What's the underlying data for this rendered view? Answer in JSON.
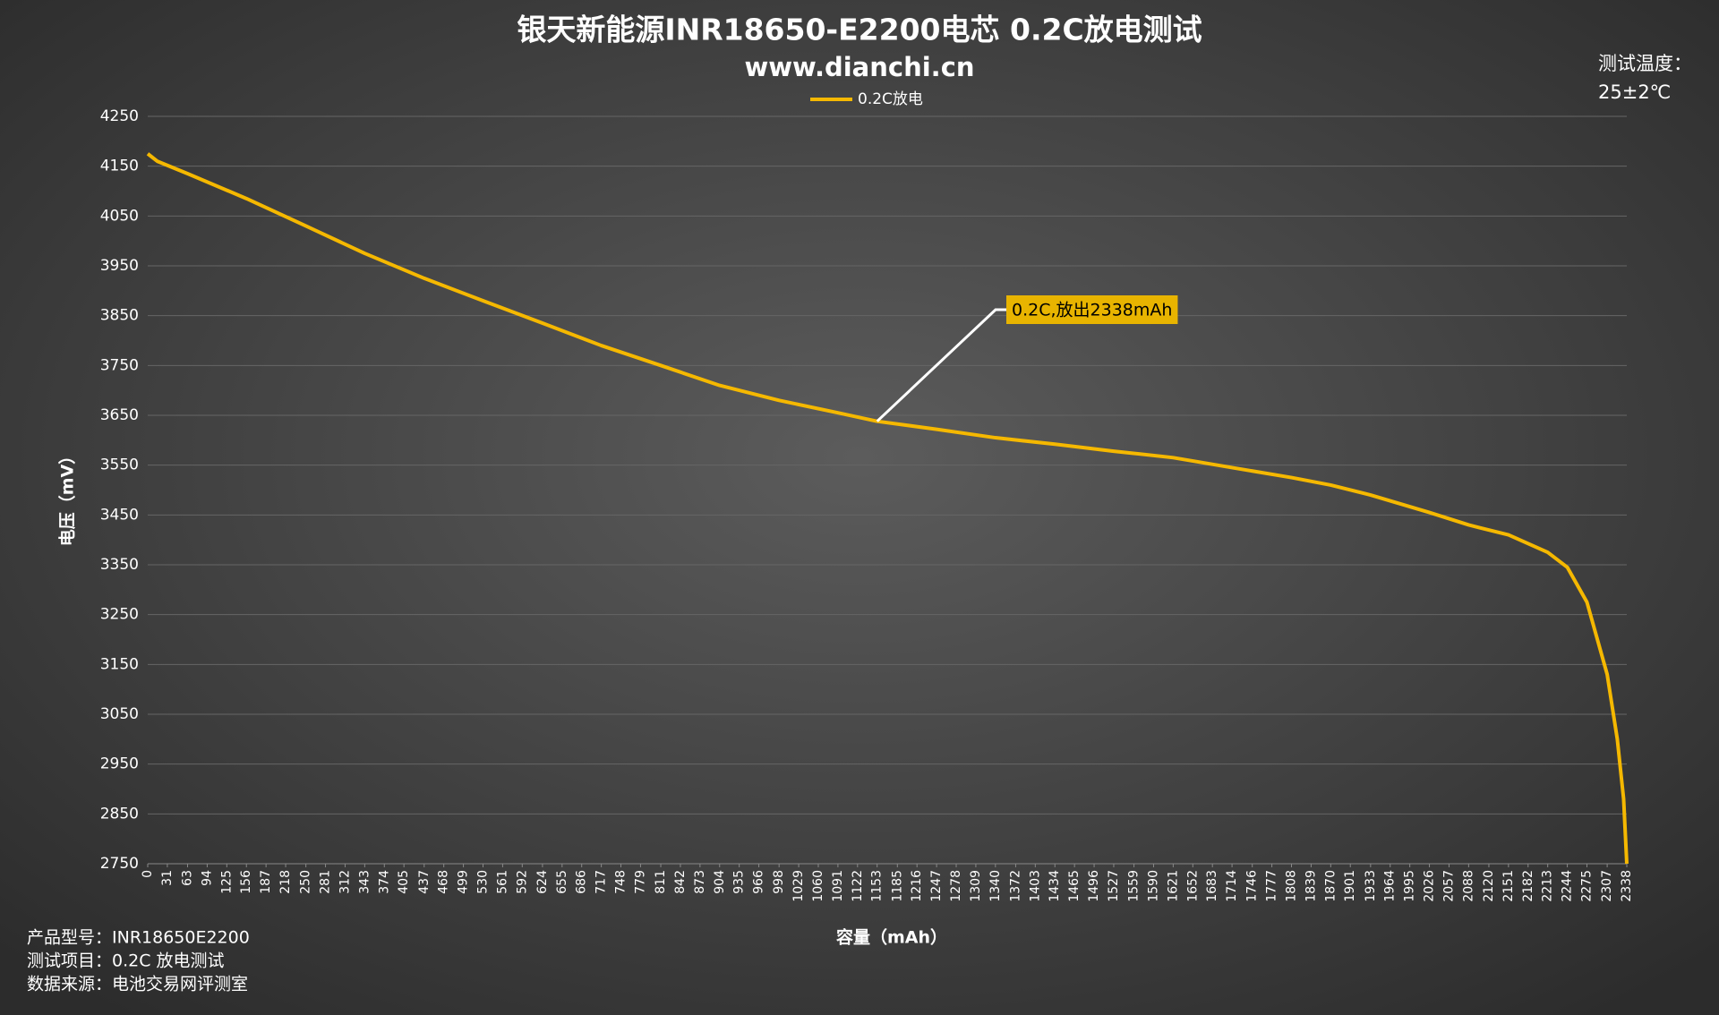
{
  "chart_data": {
    "type": "line",
    "title": "银天新能源INR18650-E2200电芯 0.2C放电测试",
    "subtitle": "www.dianchi.cn",
    "x_label": "容量（mAh）",
    "y_label": "电压（mV）",
    "x": [
      0,
      15,
      63,
      156,
      250,
      343,
      437,
      530,
      624,
      717,
      811,
      904,
      998,
      1091,
      1153,
      1247,
      1340,
      1434,
      1527,
      1621,
      1714,
      1808,
      1870,
      1933,
      2026,
      2088,
      2151,
      2213,
      2244,
      2275,
      2307,
      2323,
      2333,
      2338
    ],
    "series": [
      {
        "name": "0.2C放电",
        "color": "#f5b800",
        "values": [
          4175,
          4160,
          4135,
          4085,
          4030,
          3975,
          3925,
          3880,
          3835,
          3790,
          3750,
          3710,
          3680,
          3655,
          3638,
          3622,
          3605,
          3592,
          3578,
          3565,
          3545,
          3525,
          3510,
          3490,
          3455,
          3430,
          3410,
          3375,
          3345,
          3275,
          3130,
          3000,
          2880,
          2750
        ]
      }
    ],
    "xlim": [
      0,
      2338
    ],
    "xticks": [
      0,
      31,
      63,
      94,
      125,
      156,
      187,
      218,
      250,
      281,
      312,
      343,
      374,
      405,
      437,
      468,
      499,
      530,
      561,
      592,
      624,
      655,
      686,
      717,
      748,
      779,
      811,
      842,
      873,
      904,
      935,
      966,
      998,
      1029,
      1060,
      1091,
      1122,
      1153,
      1185,
      1216,
      1247,
      1278,
      1309,
      1340,
      1372,
      1403,
      1434,
      1465,
      1496,
      1527,
      1559,
      1590,
      1621,
      1652,
      1683,
      1714,
      1746,
      1777,
      1808,
      1839,
      1870,
      1901,
      1933,
      1964,
      1995,
      2026,
      2057,
      2088,
      2120,
      2151,
      2182,
      2213,
      2244,
      2275,
      2307,
      2338
    ],
    "ylim": [
      2750,
      4250
    ],
    "yticks": [
      2750,
      2850,
      2950,
      3050,
      3150,
      3250,
      3350,
      3450,
      3550,
      3650,
      3750,
      3850,
      3950,
      4050,
      4150,
      4250
    ],
    "grid": true,
    "legend": "top",
    "annotations": [
      {
        "text": "0.2C,放出2338mAh",
        "x": 1153
      }
    ]
  },
  "test_temperature": {
    "label": "测试温度：",
    "value": "25±2℃"
  },
  "footer": [
    "产品型号：INR18650E2200",
    "测试项目：0.2C 放电测试",
    "数据来源：电池交易网评测室"
  ]
}
